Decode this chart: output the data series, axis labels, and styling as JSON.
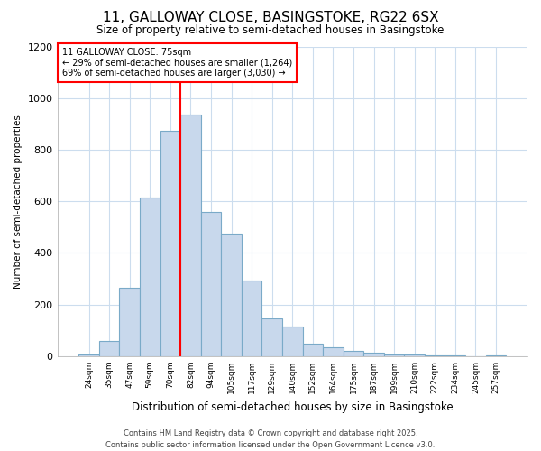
{
  "title_line1": "11, GALLOWAY CLOSE, BASINGSTOKE, RG22 6SX",
  "title_line2": "Size of property relative to semi-detached houses in Basingstoke",
  "xlabel": "Distribution of semi-detached houses by size in Basingstoke",
  "ylabel": "Number of semi-detached properties",
  "categories": [
    "24sqm",
    "35sqm",
    "47sqm",
    "59sqm",
    "70sqm",
    "82sqm",
    "94sqm",
    "105sqm",
    "117sqm",
    "129sqm",
    "140sqm",
    "152sqm",
    "164sqm",
    "175sqm",
    "187sqm",
    "199sqm",
    "210sqm",
    "222sqm",
    "234sqm",
    "245sqm",
    "257sqm"
  ],
  "values": [
    5,
    60,
    265,
    615,
    875,
    935,
    560,
    475,
    295,
    145,
    115,
    50,
    35,
    20,
    15,
    8,
    5,
    3,
    2,
    1,
    3
  ],
  "bar_color": "#c8d8ec",
  "bar_edge_color": "#7aaac8",
  "red_line_x": 4.5,
  "annotation_title": "11 GALLOWAY CLOSE: 75sqm",
  "annotation_line2": "← 29% of semi-detached houses are smaller (1,264)",
  "annotation_line3": "69% of semi-detached houses are larger (3,030) →",
  "ylim": [
    0,
    1200
  ],
  "yticks": [
    0,
    200,
    400,
    600,
    800,
    1000,
    1200
  ],
  "footer": "Contains HM Land Registry data © Crown copyright and database right 2025.\nContains public sector information licensed under the Open Government Licence v3.0.",
  "bg_color": "#ffffff",
  "grid_color": "#ccddee"
}
